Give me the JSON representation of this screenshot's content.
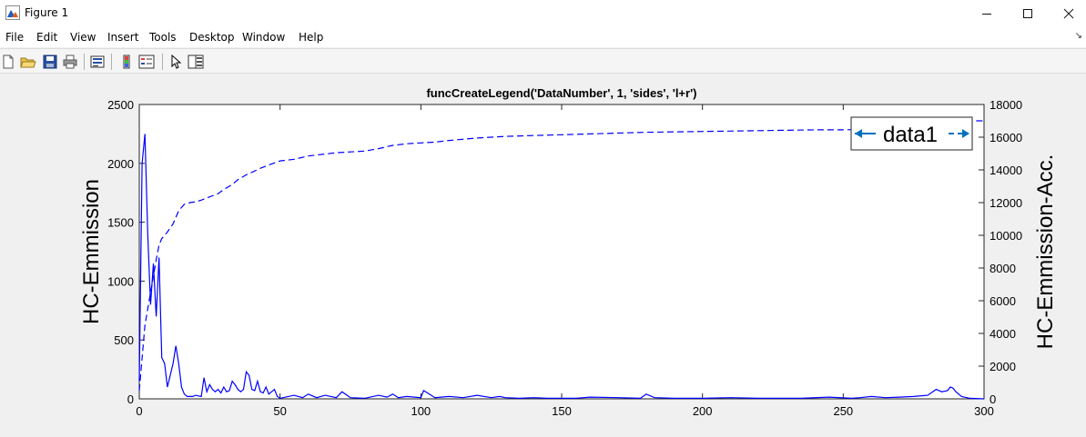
{
  "window": {
    "title": "Figure 1",
    "icon": "matlab-figure-icon",
    "controls": [
      "minimize",
      "maximize",
      "close"
    ]
  },
  "menu": [
    "File",
    "Edit",
    "View",
    "Insert",
    "Tools",
    "Desktop",
    "Window",
    "Help"
  ],
  "toolbar": [
    "new-figure-icon",
    "open-file-icon",
    "save-icon",
    "print-icon",
    "print-preview-icon",
    "colorbar-icon",
    "legend-icon",
    "pointer-icon",
    "property-editor-icon"
  ],
  "chart_data": {
    "type": "line",
    "title": "funcCreateLegend('DataNumber', 1, 'sides', 'l+r')",
    "xlabel": "",
    "ylabel_left": "HC-Emmission",
    "ylabel_right": "HC-Emmission-Acc.",
    "xlim": [
      0,
      300
    ],
    "ylim_left": [
      0,
      2500
    ],
    "ylim_right": [
      0,
      18000
    ],
    "xticks": [
      "0",
      "50",
      "100",
      "150",
      "200",
      "250",
      "300"
    ],
    "yticks_left": [
      "0",
      "500",
      "1000",
      "1500",
      "2000",
      "2500"
    ],
    "yticks_right": [
      "0",
      "2000",
      "4000",
      "6000",
      "8000",
      "10000",
      "12000",
      "14000",
      "16000",
      "18000"
    ],
    "grid": false,
    "legend": {
      "entries": [
        "data1"
      ],
      "placement": "top-right"
    },
    "color": "#0000ff",
    "legend_arrow_color": "#0072bd",
    "series": [
      {
        "axis": "left",
        "style": "solid",
        "x": [
          0,
          1,
          2,
          3,
          4,
          5,
          6,
          7,
          8,
          9,
          10,
          11,
          12,
          13,
          14,
          15,
          16,
          17,
          18,
          19,
          20,
          21,
          22,
          23,
          24,
          25,
          26,
          27,
          28,
          29,
          30,
          31,
          32,
          33,
          34,
          35,
          36,
          37,
          38,
          39,
          40,
          41,
          42,
          43,
          44,
          45,
          46,
          47,
          48,
          49,
          50,
          55,
          58,
          60,
          63,
          66,
          70,
          72,
          75,
          80,
          85,
          88,
          90,
          92,
          95,
          100,
          101,
          103,
          105,
          110,
          115,
          120,
          125,
          128,
          130,
          135,
          140,
          145,
          150,
          155,
          160,
          170,
          178,
          180,
          183,
          190,
          200,
          210,
          220,
          235,
          245,
          253,
          256,
          260,
          265,
          270,
          275,
          280,
          283,
          285,
          287,
          288,
          289,
          290,
          292,
          295,
          300
        ],
        "y": [
          150,
          2000,
          2250,
          1400,
          800,
          1150,
          700,
          1200,
          350,
          300,
          100,
          200,
          300,
          450,
          300,
          100,
          40,
          20,
          20,
          20,
          30,
          25,
          20,
          180,
          60,
          120,
          80,
          60,
          80,
          50,
          100,
          60,
          70,
          150,
          120,
          80,
          60,
          80,
          230,
          200,
          80,
          70,
          150,
          60,
          50,
          100,
          40,
          60,
          80,
          20,
          5,
          30,
          10,
          40,
          10,
          30,
          10,
          60,
          10,
          5,
          30,
          15,
          40,
          10,
          20,
          10,
          70,
          40,
          10,
          20,
          10,
          30,
          10,
          20,
          10,
          5,
          10,
          5,
          5,
          5,
          15,
          10,
          5,
          40,
          10,
          5,
          5,
          10,
          5,
          5,
          15,
          5,
          10,
          20,
          10,
          15,
          20,
          30,
          80,
          60,
          70,
          100,
          90,
          60,
          20,
          5,
          0
        ]
      },
      {
        "axis": "right",
        "style": "dashed",
        "x": [
          0,
          1,
          2,
          3,
          4,
          5,
          6,
          7,
          8,
          9,
          10,
          12,
          14,
          16,
          18,
          20,
          22,
          25,
          28,
          30,
          33,
          35,
          38,
          40,
          43,
          46,
          50,
          55,
          60,
          65,
          70,
          75,
          80,
          85,
          90,
          95,
          100,
          105,
          110,
          120,
          130,
          140,
          150,
          160,
          180,
          200,
          220,
          240,
          250,
          260,
          270,
          280,
          285,
          287,
          290,
          300
        ],
        "y": [
          500,
          2500,
          4500,
          5500,
          6500,
          7500,
          8500,
          9400,
          9800,
          10000,
          10200,
          10700,
          11500,
          11900,
          12000,
          12050,
          12150,
          12350,
          12550,
          12800,
          13100,
          13400,
          13700,
          13850,
          14100,
          14300,
          14550,
          14650,
          14850,
          14950,
          15050,
          15100,
          15150,
          15300,
          15500,
          15600,
          15650,
          15700,
          15800,
          15950,
          16050,
          16100,
          16150,
          16200,
          16300,
          16350,
          16400,
          16450,
          16450,
          16480,
          16500,
          16550,
          16800,
          17000,
          17000,
          17000
        ]
      }
    ]
  }
}
